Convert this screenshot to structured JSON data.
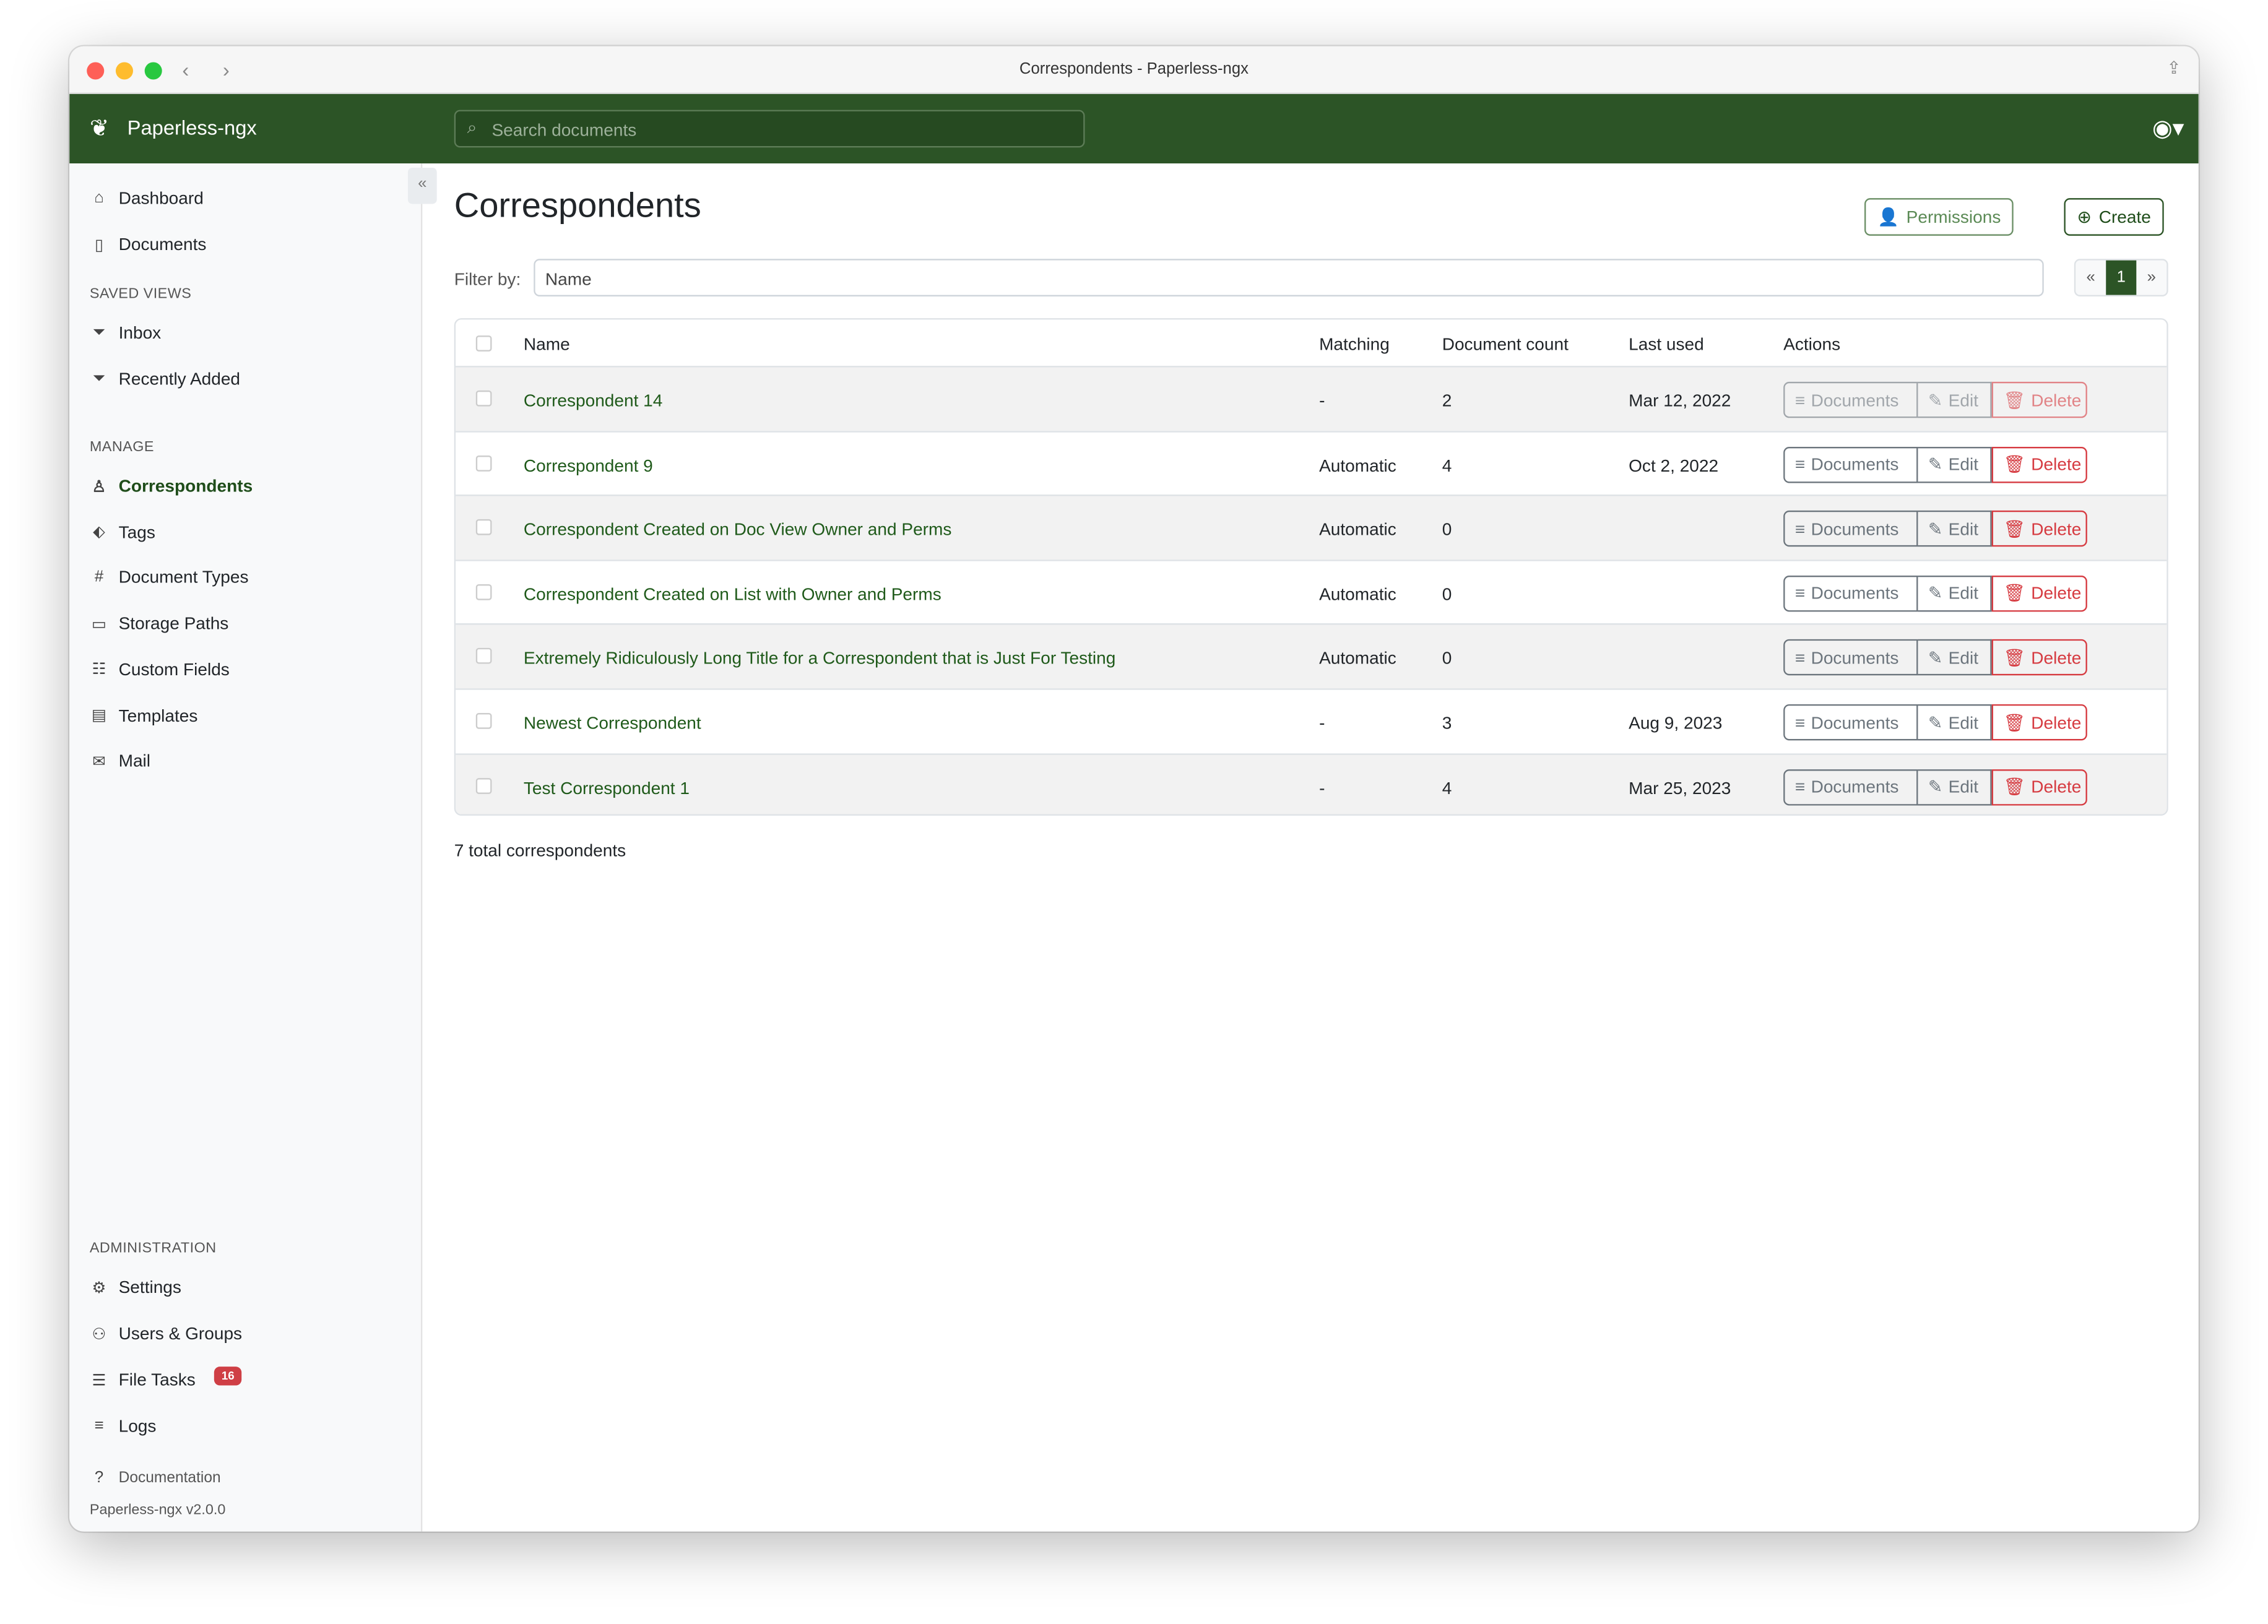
{
  "window": {
    "title": "Correspondents - Paperless-ngx"
  },
  "header": {
    "brand": "Paperless-ngx",
    "search_placeholder": "Search documents"
  },
  "colors": {
    "brand": "#2c5426",
    "danger": "#d63a40",
    "badge": "#cf3f45"
  },
  "sidebar": {
    "items": [
      {
        "label": "Dashboard",
        "icon": "house-icon"
      },
      {
        "label": "Documents",
        "icon": "file-icon"
      }
    ],
    "saved_views_heading": "SAVED VIEWS",
    "saved_views": [
      {
        "label": "Inbox",
        "icon": "funnel-icon"
      },
      {
        "label": "Recently Added",
        "icon": "funnel-icon"
      }
    ],
    "manage_heading": "MANAGE",
    "manage": [
      {
        "label": "Correspondents",
        "icon": "person-icon",
        "active": true
      },
      {
        "label": "Tags",
        "icon": "tags-icon"
      },
      {
        "label": "Document Types",
        "icon": "hash-icon"
      },
      {
        "label": "Storage Paths",
        "icon": "folder-icon"
      },
      {
        "label": "Custom Fields",
        "icon": "ui-radios-icon"
      },
      {
        "label": "Templates",
        "icon": "file-text-icon"
      },
      {
        "label": "Mail",
        "icon": "envelope-icon"
      }
    ],
    "admin_heading": "ADMINISTRATION",
    "admin": [
      {
        "label": "Settings",
        "icon": "gear-icon"
      },
      {
        "label": "Users & Groups",
        "icon": "people-icon"
      },
      {
        "label": "File Tasks",
        "icon": "list-task-icon",
        "badge": "16"
      },
      {
        "label": "Logs",
        "icon": "text-left-icon"
      }
    ],
    "documentation": "Documentation",
    "version": "Paperless-ngx v2.0.0"
  },
  "main": {
    "title": "Correspondents",
    "permissions_label": "Permissions",
    "create_label": "Create",
    "filter_label": "Filter by:",
    "filter_placeholder": "Name",
    "pager": {
      "prev": "«",
      "current": "1",
      "next": "»"
    },
    "columns": [
      "Name",
      "Matching",
      "Document count",
      "Last used",
      "Actions"
    ],
    "actions": {
      "documents": "Documents",
      "edit": "Edit",
      "delete": "Delete"
    },
    "rows": [
      {
        "name": "Correspondent 14",
        "matching": "-",
        "count": "2",
        "last_used": "Mar 12, 2022",
        "disabled": true
      },
      {
        "name": "Correspondent 9",
        "matching": "Automatic",
        "count": "4",
        "last_used": "Oct 2, 2022"
      },
      {
        "name": "Correspondent Created on Doc View Owner and Perms",
        "matching": "Automatic",
        "count": "0",
        "last_used": ""
      },
      {
        "name": "Correspondent Created on List with Owner and Perms",
        "matching": "Automatic",
        "count": "0",
        "last_used": ""
      },
      {
        "name": "Extremely Ridiculously Long Title for a Correspondent that is Just For Testing",
        "matching": "Automatic",
        "count": "0",
        "last_used": ""
      },
      {
        "name": "Newest Correspondent",
        "matching": "-",
        "count": "3",
        "last_used": "Aug 9, 2023"
      },
      {
        "name": "Test Correspondent 1",
        "matching": "-",
        "count": "4",
        "last_used": "Mar 25, 2023"
      }
    ],
    "total": "7 total correspondents"
  }
}
